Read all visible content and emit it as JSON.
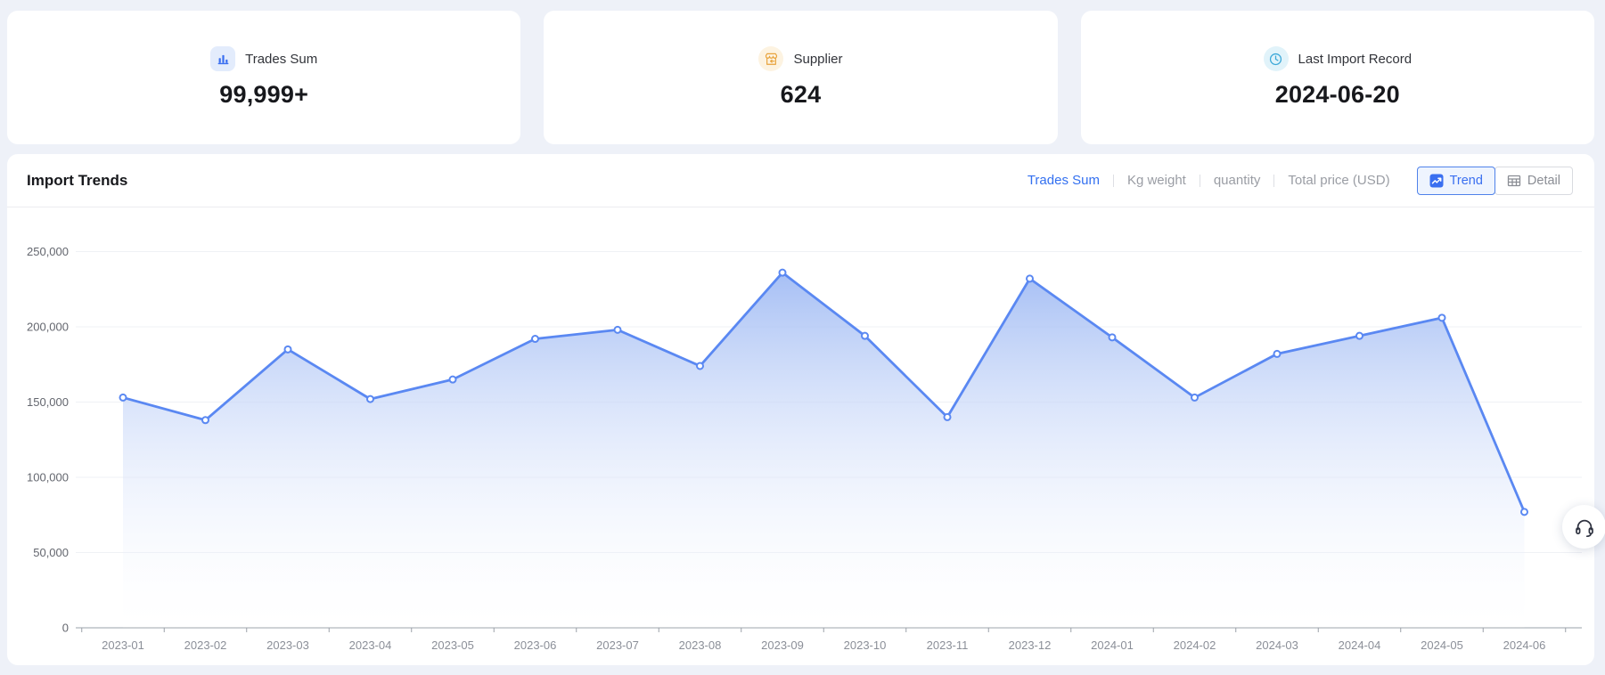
{
  "colors": {
    "page_bg": "#eef1f8",
    "accent_blue": "#3370f0",
    "line_blue": "#5a88f2",
    "inactive_gray": "#9a9da4",
    "trend_btn_bg": "#eef4fe",
    "trend_btn_border": "#4f82ea"
  },
  "stats": [
    {
      "icon": "bar-chart-icon",
      "icon_bg": "#e3ecfc",
      "icon_color": "#3a6ff0",
      "label": "Trades Sum",
      "value": "99,999+"
    },
    {
      "icon": "storefront-icon",
      "icon_bg": "#fdf3e1",
      "icon_color": "#e8a33c",
      "label": "Supplier",
      "value": "624"
    },
    {
      "icon": "clock-icon",
      "icon_bg": "#e1f3fa",
      "icon_color": "#3ba8d8",
      "label": "Last Import Record",
      "value": "2024-06-20"
    }
  ],
  "trends": {
    "title": "Import Trends",
    "metric_tabs": [
      {
        "label": "Trades Sum",
        "active": true
      },
      {
        "label": "Kg weight",
        "active": false
      },
      {
        "label": "quantity",
        "active": false
      },
      {
        "label": "Total price (USD)",
        "active": false
      }
    ],
    "view_buttons": [
      {
        "label": "Trend",
        "active": true
      },
      {
        "label": "Detail",
        "active": false
      }
    ]
  },
  "chart_data": {
    "type": "area",
    "title": "Import Trends",
    "series_name": "Trades Sum",
    "x": [
      "2023-01",
      "2023-02",
      "2023-03",
      "2023-04",
      "2023-05",
      "2023-06",
      "2023-07",
      "2023-08",
      "2023-09",
      "2023-10",
      "2023-11",
      "2023-12",
      "2024-01",
      "2024-02",
      "2024-03",
      "2024-04",
      "2024-05",
      "2024-06"
    ],
    "values": [
      153000,
      138000,
      185000,
      152000,
      165000,
      192000,
      198000,
      174000,
      236000,
      194000,
      140000,
      232000,
      193000,
      153000,
      182000,
      194000,
      206000,
      77000
    ],
    "ylim": [
      0,
      250000
    ],
    "y_ticks": [
      0,
      50000,
      100000,
      150000,
      200000,
      250000
    ],
    "grid": true,
    "legend_position": "none",
    "line_color": "#5a88f2",
    "marker": "hollow-circle",
    "area_gradient_top": "#a2bcf4",
    "area_gradient_bottom": "rgba(255,255,255,0.08)"
  }
}
